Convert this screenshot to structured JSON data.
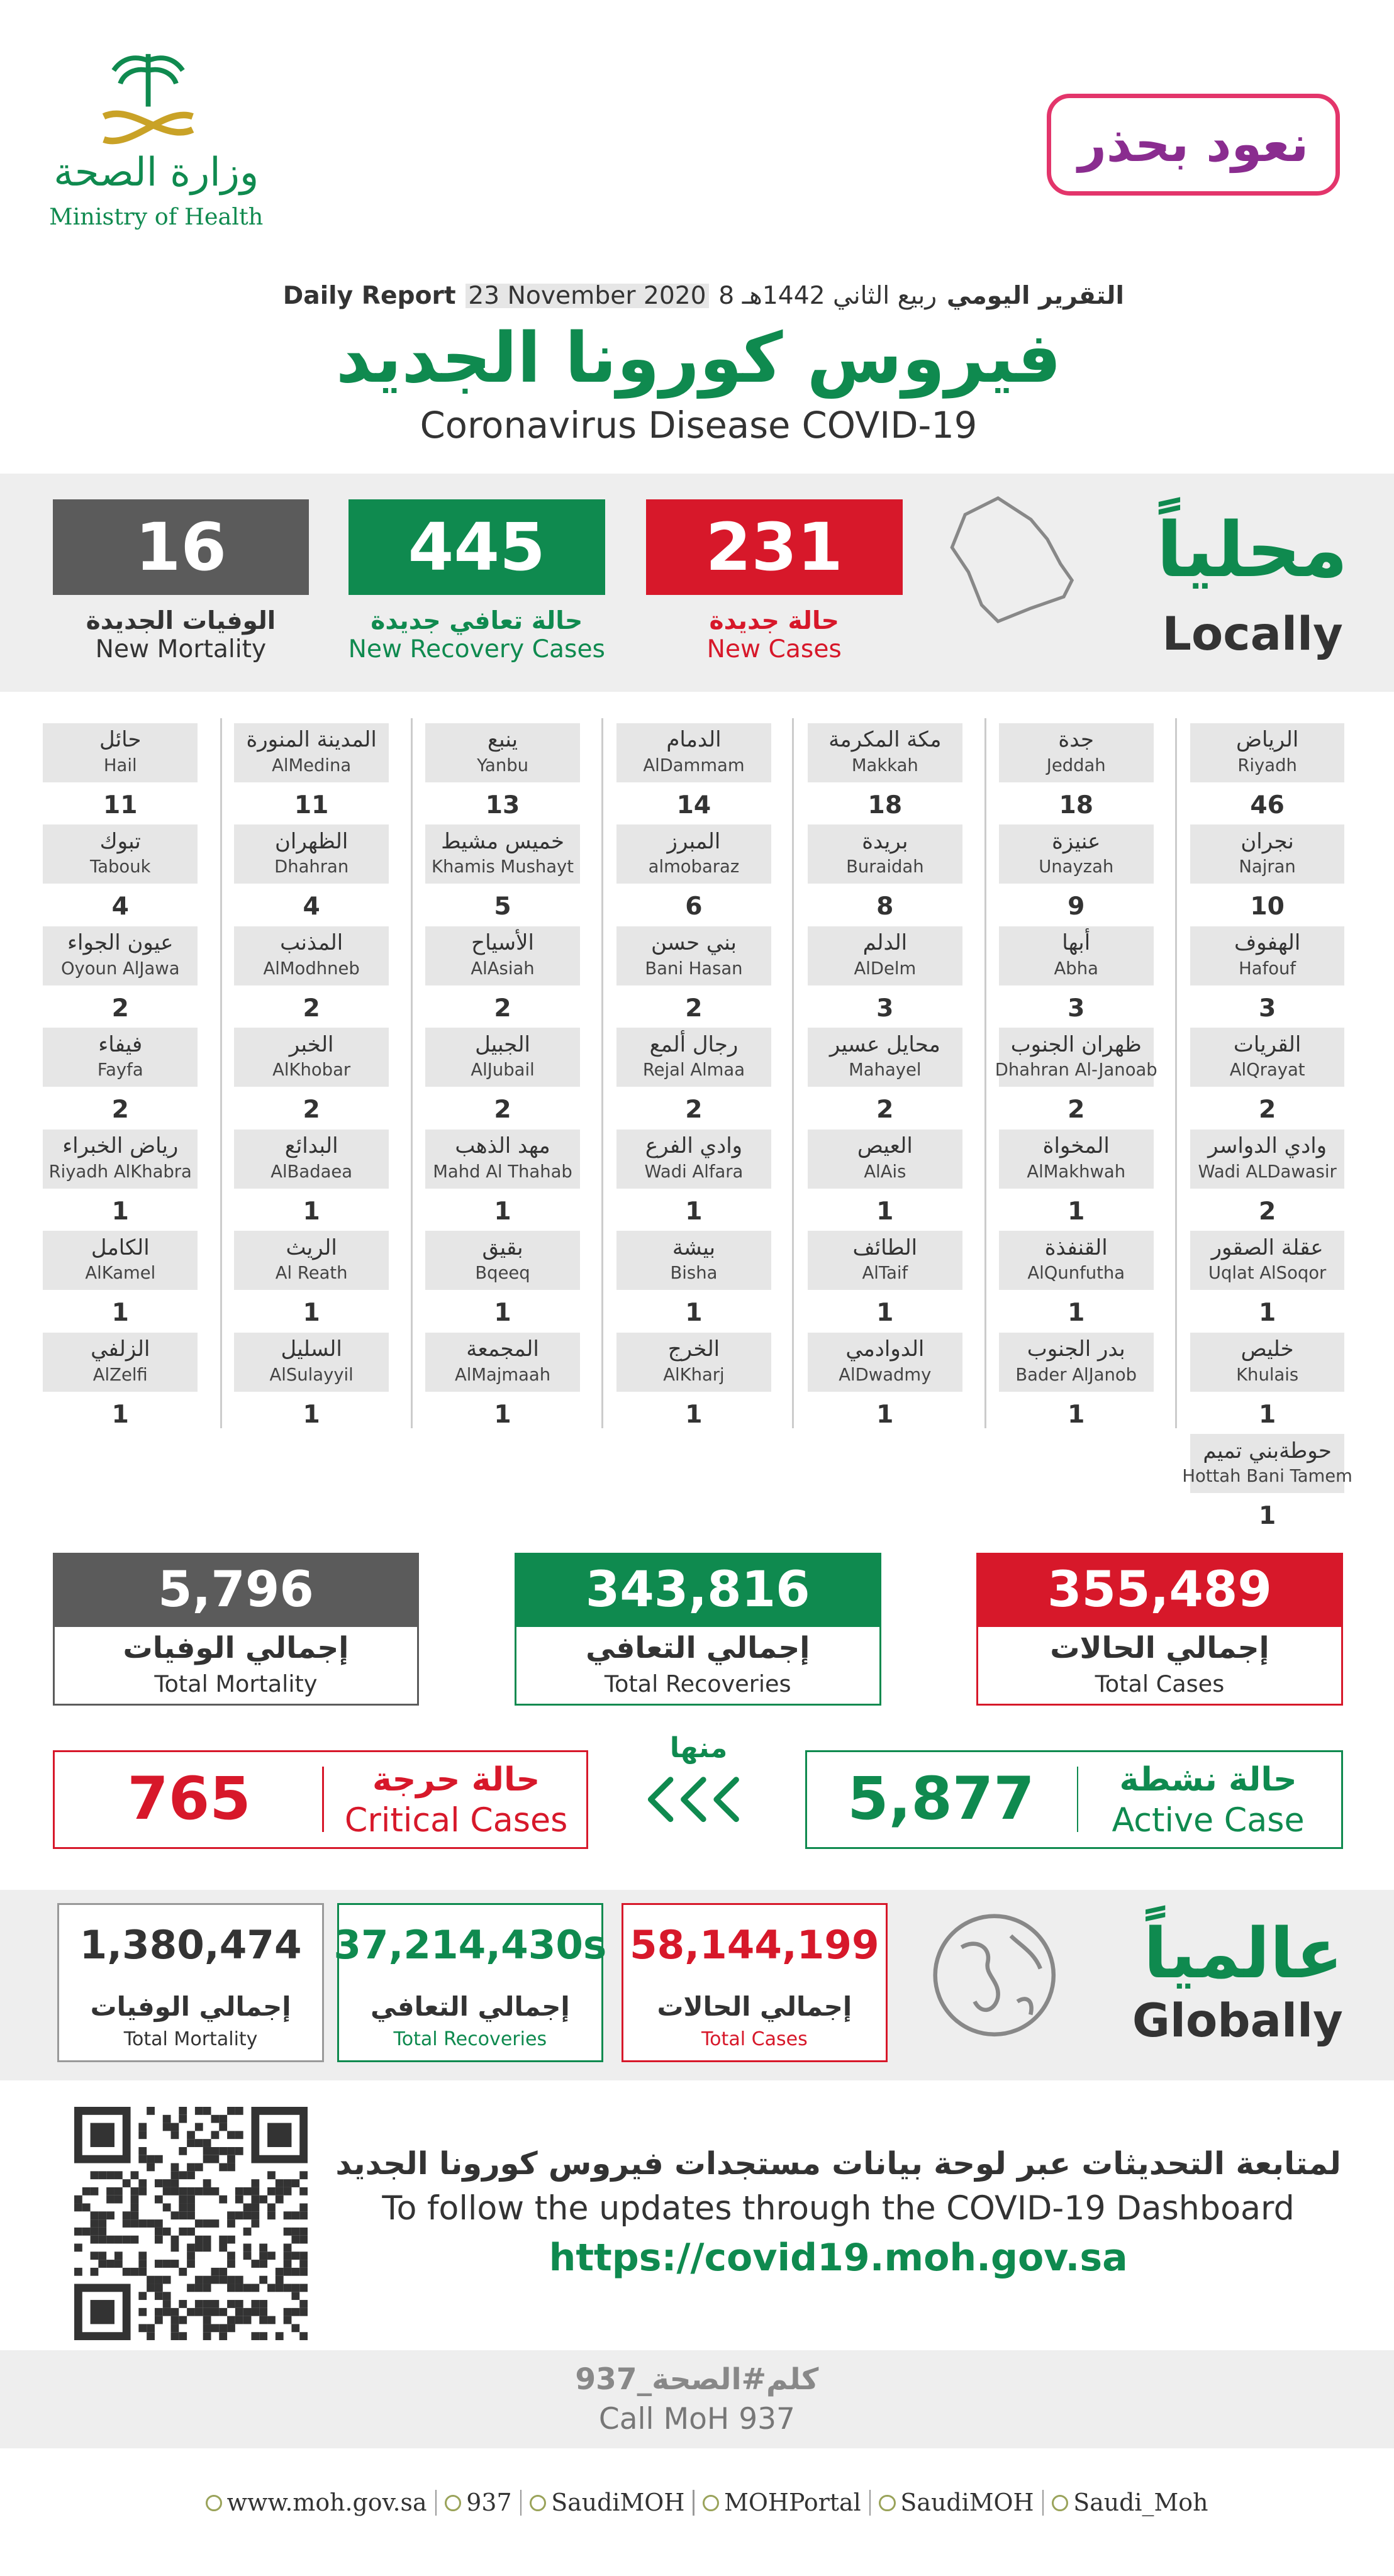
{
  "header": {
    "ministry_ar": "وزارة الصحة",
    "ministry_en": "Ministry of Health",
    "campaign": "نعود بحذر"
  },
  "report": {
    "label_ar": "التقرير اليومي",
    "date_hijri": "8 ربيع الثاني 1442هـ",
    "date": "23 November 2020",
    "label_en": "Daily Report",
    "title_ar": "فيروس كورونا الجديد",
    "title_en": "Coronavirus Disease COVID-19"
  },
  "local": {
    "label_ar": "محلياً",
    "label_en": "Locally",
    "boxes": [
      {
        "value": "231",
        "label_ar": "حالة جديدة",
        "label_en": "New Cases"
      },
      {
        "value": "445",
        "label_ar": "حالة تعافي جديدة",
        "label_en": "New Recovery Cases"
      },
      {
        "value": "16",
        "label_ar": "الوفيات الجديدة",
        "label_en": "New Mortality"
      }
    ]
  },
  "cities": {
    "columns": [
      [
        {
          "ar": "الرياض",
          "en": "Riyadh",
          "count": 46
        },
        {
          "ar": "نجران",
          "en": "Najran",
          "count": 10
        },
        {
          "ar": "الهفوف",
          "en": "Hafouf",
          "count": 3
        },
        {
          "ar": "القريات",
          "en": "AlQrayat",
          "count": 2
        },
        {
          "ar": "وادي الدواسر",
          "en": "Wadi ALDawasir",
          "count": 2
        },
        {
          "ar": "عقلة الصقور",
          "en": "Uqlat AlSoqor",
          "count": 1
        },
        {
          "ar": "خليص",
          "en": "Khulais",
          "count": 1
        },
        {
          "ar": "حوطةبني تميم",
          "en": "Hottah Bani Tamem",
          "count": 1
        }
      ],
      [
        {
          "ar": "جدة",
          "en": "Jeddah",
          "count": 18
        },
        {
          "ar": "عنيزة",
          "en": "Unayzah",
          "count": 9
        },
        {
          "ar": "أبها",
          "en": "Abha",
          "count": 3
        },
        {
          "ar": "ظهران الجنوب",
          "en": "Dhahran Al-Janoab",
          "count": 2
        },
        {
          "ar": "المخواة",
          "en": "AlMakhwah",
          "count": 1
        },
        {
          "ar": "القنفذة",
          "en": "AlQunfutha",
          "count": 1
        },
        {
          "ar": "بدر الجنوب",
          "en": "Bader AlJanob",
          "count": 1
        }
      ],
      [
        {
          "ar": "مكة المكرمة",
          "en": "Makkah",
          "count": 18
        },
        {
          "ar": "بريدة",
          "en": "Buraidah",
          "count": 8
        },
        {
          "ar": "الدلم",
          "en": "AlDelm",
          "count": 3
        },
        {
          "ar": "محايل عسير",
          "en": "Mahayel",
          "count": 2
        },
        {
          "ar": "العيص",
          "en": "AlAis",
          "count": 1
        },
        {
          "ar": "الطائف",
          "en": "AlTaif",
          "count": 1
        },
        {
          "ar": "الدوادمي",
          "en": "AlDwadmy",
          "count": 1
        }
      ],
      [
        {
          "ar": "الدمام",
          "en": "AlDammam",
          "count": 14
        },
        {
          "ar": "المبرز",
          "en": "almobaraz",
          "count": 6
        },
        {
          "ar": "بني حسن",
          "en": "Bani Hasan",
          "count": 2
        },
        {
          "ar": "رجال ألمع",
          "en": "Rejal Almaa",
          "count": 2
        },
        {
          "ar": "وادي الفرع",
          "en": "Wadi Alfara",
          "count": 1
        },
        {
          "ar": "بيشة",
          "en": "Bisha",
          "count": 1
        },
        {
          "ar": "الخرج",
          "en": "AlKharj",
          "count": 1
        }
      ],
      [
        {
          "ar": "ينبع",
          "en": "Yanbu",
          "count": 13
        },
        {
          "ar": "خميس مشيط",
          "en": "Khamis Mushayt",
          "count": 5
        },
        {
          "ar": "الأسياح",
          "en": "AlAsiah",
          "count": 2
        },
        {
          "ar": "الجبيل",
          "en": "AlJubail",
          "count": 2
        },
        {
          "ar": "مهد الذهب",
          "en": "Mahd Al Thahab",
          "count": 1
        },
        {
          "ar": "بقيق",
          "en": "Bqeeq",
          "count": 1
        },
        {
          "ar": "المجمعة",
          "en": "AlMajmaah",
          "count": 1
        }
      ],
      [
        {
          "ar": "المدينة المنورة",
          "en": "AlMedina",
          "count": 11
        },
        {
          "ar": "الظهران",
          "en": "Dhahran",
          "count": 4
        },
        {
          "ar": "المذنب",
          "en": "AlModhneb",
          "count": 2
        },
        {
          "ar": "الخبر",
          "en": "AlKhobar",
          "count": 2
        },
        {
          "ar": "البدائع",
          "en": "AlBadaea",
          "count": 1
        },
        {
          "ar": "الريث",
          "en": "Al Reath",
          "count": 1
        },
        {
          "ar": "السليل",
          "en": "AlSulayyil",
          "count": 1
        }
      ],
      [
        {
          "ar": "حائل",
          "en": "Hail",
          "count": 11
        },
        {
          "ar": "تبوك",
          "en": "Tabouk",
          "count": 4
        },
        {
          "ar": "عيون الجواء",
          "en": "Oyoun AlJawa",
          "count": 2
        },
        {
          "ar": "فيفاء",
          "en": "Fayfa",
          "count": 2
        },
        {
          "ar": "رياض الخبراء",
          "en": "Riyadh AlKhabra",
          "count": 1
        },
        {
          "ar": "الكامل",
          "en": "AlKamel",
          "count": 1
        },
        {
          "ar": "الزلفي",
          "en": "AlZelfi",
          "count": 1
        }
      ]
    ]
  },
  "totals": [
    {
      "value": "355,489",
      "label_ar": "إجمالي الحالات",
      "label_en": "Total Cases"
    },
    {
      "value": "343,816",
      "label_ar": "إجمالي التعافي",
      "label_en": "Total Recoveries"
    },
    {
      "value": "5,796",
      "label_ar": "إجمالي الوفيات",
      "label_en": "Total Mortality"
    }
  ],
  "status": {
    "active": {
      "label_ar": "حالة نشطة",
      "label_en": "Active Case",
      "value": "5,877"
    },
    "of_which": "منها",
    "critical": {
      "label_ar": "حالة حرجة",
      "label_en": "Critical Cases",
      "value": "765"
    }
  },
  "global": {
    "label_ar": "عالمياً",
    "label_en": "Globally",
    "boxes": [
      {
        "value": "58,144,199",
        "label_ar": "إجمالي الحالات",
        "label_en": "Total Cases"
      },
      {
        "value": "37,214,430s",
        "label_ar": "إجمالي التعافي",
        "label_en": "Total Recoveries"
      },
      {
        "value": "1,380,474",
        "label_ar": "إجمالي الوفيات",
        "label_en": "Total Mortality"
      }
    ]
  },
  "dashboard": {
    "text_ar": "لمتابعة التحديثات عبر لوحة بيانات مستجدات فيروس كورونا الجديد",
    "text_en": "To follow the updates through the COVID-19 Dashboard",
    "url": "https://covid19.moh.gov.sa"
  },
  "call": {
    "text_ar": "كلم#الصحة_937",
    "text_en": "Call MoH 937"
  },
  "footer": {
    "links": [
      "www.moh.gov.sa",
      "937",
      "SaudiMOH",
      "MOHPortal",
      "SaudiMOH",
      "Saudi_Moh"
    ]
  }
}
